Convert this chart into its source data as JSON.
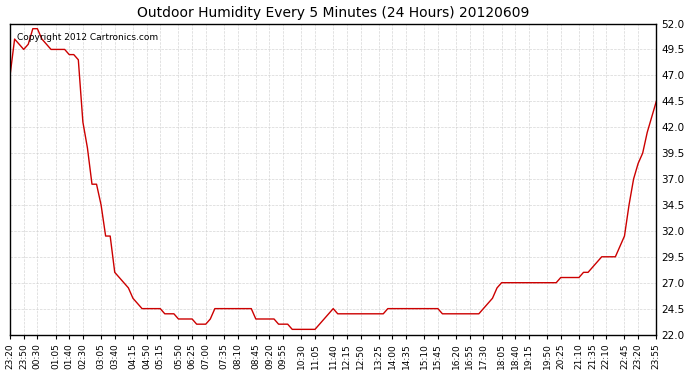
{
  "title": "Outdoor Humidity Every 5 Minutes (24 Hours) 20120609",
  "copyright_text": "Copyright 2012 Cartronics.com",
  "line_color": "#cc0000",
  "background_color": "#ffffff",
  "grid_color": "#cccccc",
  "ylim": [
    22.0,
    52.0
  ],
  "yticks": [
    22.0,
    24.5,
    27.0,
    29.5,
    32.0,
    34.5,
    37.0,
    39.5,
    42.0,
    44.5,
    47.0,
    49.5,
    52.0
  ],
  "x_labels": [
    "23:20",
    "23:50",
    "00:30",
    "01:05",
    "01:40",
    "02:30",
    "03:05",
    "03:40",
    "04:15",
    "04:50",
    "05:15",
    "05:50",
    "06:25",
    "07:00",
    "07:35",
    "08:10",
    "08:45",
    "09:20",
    "09:55",
    "10:30",
    "11:05",
    "11:40",
    "12:15",
    "12:50",
    "13:25",
    "14:00",
    "14:35",
    "15:10",
    "15:45",
    "16:20",
    "16:55",
    "17:30",
    "18:05",
    "18:40",
    "19:15",
    "19:50",
    "20:25",
    "21:10",
    "21:35",
    "22:10",
    "22:45",
    "23:20",
    "23:55"
  ],
  "humidity_values": [
    47.0,
    50.5,
    50.0,
    49.5,
    50.0,
    51.5,
    51.5,
    50.5,
    50.0,
    49.5,
    49.5,
    49.5,
    49.5,
    49.0,
    49.0,
    48.5,
    42.5,
    40.0,
    36.5,
    36.5,
    34.5,
    31.5,
    31.5,
    28.0,
    27.5,
    27.0,
    26.5,
    25.5,
    25.0,
    24.5,
    24.5,
    24.5,
    24.5,
    24.5,
    24.0,
    24.0,
    24.0,
    23.5,
    23.5,
    23.5,
    23.5,
    23.0,
    23.0,
    23.0,
    23.5,
    24.5,
    24.5,
    24.5,
    24.5,
    24.5,
    24.5,
    24.5,
    24.5,
    24.5,
    23.5,
    23.5,
    23.5,
    23.5,
    23.5,
    23.0,
    23.0,
    23.0,
    22.5,
    22.5,
    22.5,
    22.5,
    22.5,
    22.5,
    23.0,
    23.5,
    24.0,
    24.5,
    24.0,
    24.0,
    24.0,
    24.0,
    24.0,
    24.0,
    24.0,
    24.0,
    24.0,
    24.0,
    24.0,
    24.5,
    24.5,
    24.5,
    24.5,
    24.5,
    24.5,
    24.5,
    24.5,
    24.5,
    24.5,
    24.5,
    24.5,
    24.0,
    24.0,
    24.0,
    24.0,
    24.0,
    24.0,
    24.0,
    24.0,
    24.0,
    24.5,
    25.0,
    25.5,
    26.5,
    27.0,
    27.0,
    27.0,
    27.0,
    27.0,
    27.0,
    27.0,
    27.0,
    27.0,
    27.0,
    27.0,
    27.0,
    27.0,
    27.5,
    27.5,
    27.5,
    27.5,
    27.5,
    28.0,
    28.0,
    28.5,
    29.0,
    29.5,
    29.5,
    29.5,
    29.5,
    30.5,
    31.5,
    34.5,
    37.0,
    38.5,
    39.5,
    41.5,
    43.0,
    44.5
  ]
}
